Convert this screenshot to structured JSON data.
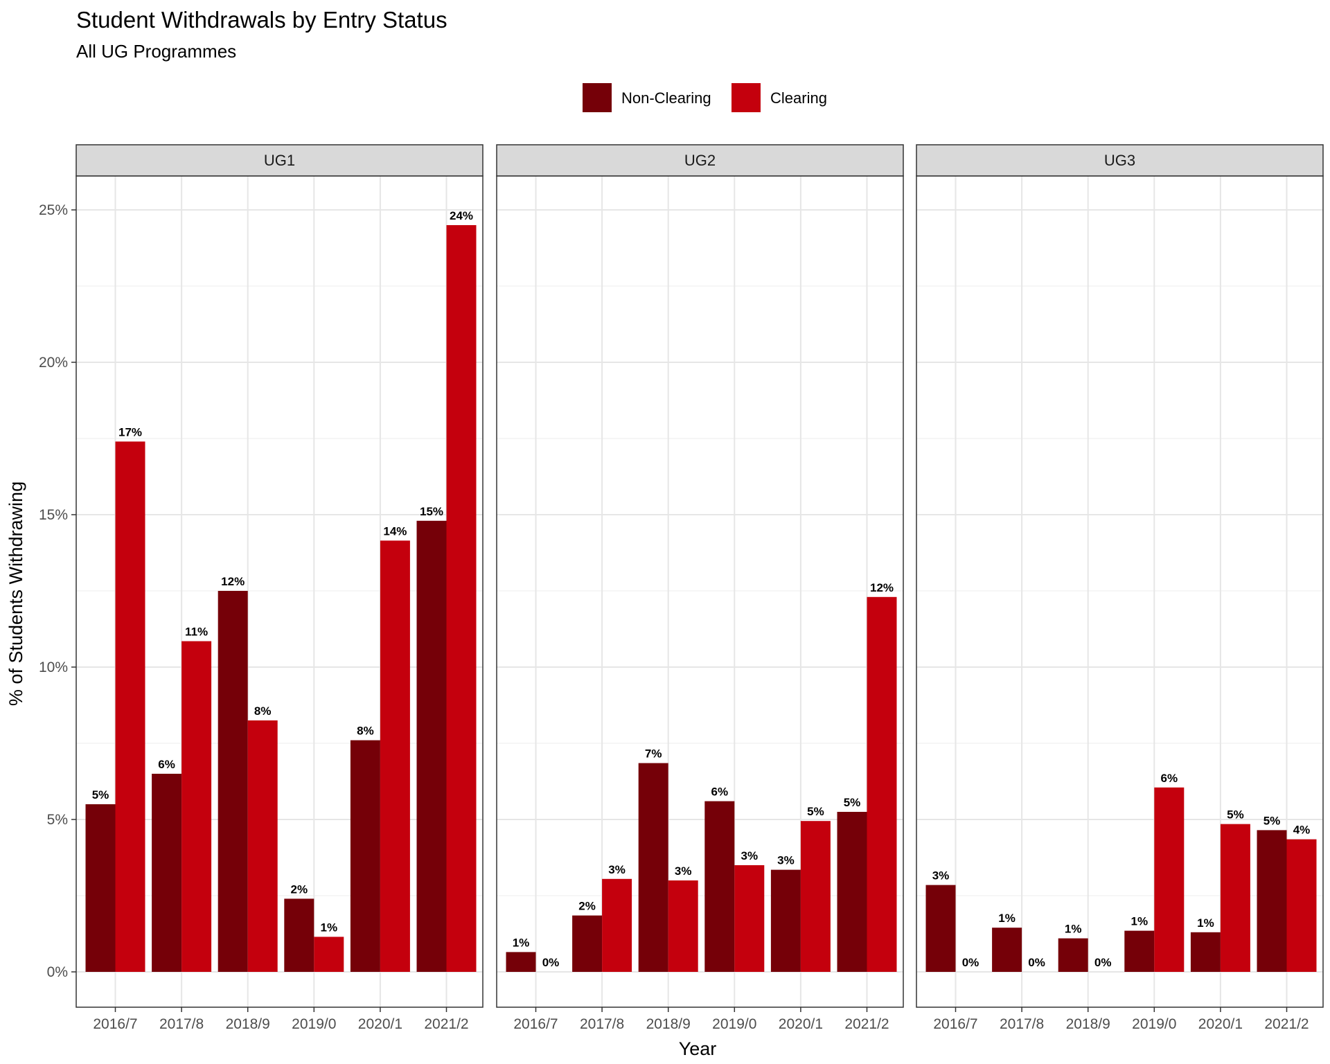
{
  "chart_data": {
    "type": "bar",
    "title": "Student Withdrawals by Entry Status",
    "subtitle": "All UG Programmes",
    "xlabel": "Year",
    "ylabel": "% of Students Withdrawing",
    "ylim": [
      0,
      26
    ],
    "y_ticks": [
      "0%",
      "5%",
      "10%",
      "15%",
      "20%",
      "25%"
    ],
    "y_tick_values": [
      0,
      5,
      10,
      15,
      20,
      25
    ],
    "grid": true,
    "legend_position": "top",
    "categories": [
      "2016/7",
      "2017/8",
      "2018/9",
      "2019/0",
      "2020/1",
      "2021/2"
    ],
    "series_names": [
      "Non-Clearing",
      "Clearing"
    ],
    "series_colors": [
      "#750008",
      "#c4000d"
    ],
    "panels": [
      {
        "name": "UG1",
        "series": [
          {
            "name": "Non-Clearing",
            "values": [
              5.5,
              6.5,
              12.5,
              2.4,
              7.6,
              14.8
            ],
            "labels": [
              "5%",
              "6%",
              "12%",
              "2%",
              "8%",
              "15%"
            ]
          },
          {
            "name": "Clearing",
            "values": [
              17.4,
              10.85,
              8.25,
              1.15,
              14.15,
              24.5
            ],
            "labels": [
              "17%",
              "11%",
              "8%",
              "1%",
              "14%",
              "24%"
            ]
          }
        ]
      },
      {
        "name": "UG2",
        "series": [
          {
            "name": "Non-Clearing",
            "values": [
              0.65,
              1.85,
              6.85,
              5.6,
              3.35,
              5.25
            ],
            "labels": [
              "1%",
              "2%",
              "7%",
              "6%",
              "3%",
              "5%"
            ]
          },
          {
            "name": "Clearing",
            "values": [
              0,
              3.05,
              3.0,
              3.5,
              4.95,
              12.3
            ],
            "labels": [
              "0%",
              "3%",
              "3%",
              "3%",
              "5%",
              "12%"
            ]
          }
        ]
      },
      {
        "name": "UG3",
        "series": [
          {
            "name": "Non-Clearing",
            "values": [
              2.85,
              1.45,
              1.1,
              1.35,
              1.3,
              4.65
            ],
            "labels": [
              "3%",
              "1%",
              "1%",
              "1%",
              "1%",
              "5%"
            ]
          },
          {
            "name": "Clearing",
            "values": [
              0,
              0,
              0,
              6.05,
              4.85,
              4.35
            ],
            "labels": [
              "0%",
              "0%",
              "0%",
              "6%",
              "5%",
              "4%"
            ]
          }
        ]
      }
    ]
  }
}
